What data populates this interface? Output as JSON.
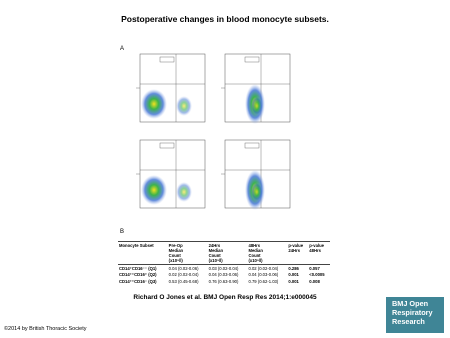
{
  "title": "Postoperative changes in blood monocyte subsets.",
  "panels": [
    "A",
    "B"
  ],
  "table": {
    "header": [
      [
        "Monocyte Subset"
      ],
      [
        "Pre-Op",
        "Median",
        "Count",
        "(x10⁹/l)"
      ],
      [
        "24Hrs",
        "Median",
        "Count",
        "(x10⁹/l)"
      ],
      [
        "48Hrs",
        "Median",
        "Count",
        "(x10⁹/l)"
      ],
      [
        "p-value",
        "24Hrs"
      ],
      [
        "p-value",
        "48Hrs"
      ]
    ],
    "rows": [
      [
        "CD14⁺CD16⁻⁻ (Q1)",
        "0.04 (0.02-0.06)",
        "0.03 (0.02-0.04)",
        "0.02 (0.02-0.04)",
        "0.286",
        "0.057"
      ],
      [
        "CD14⁺⁺CD16⁺ (Q2)",
        "0.02 (0.02-0.04)",
        "0.04 (0.03-0.06)",
        "0.04 (0.03-0.06)",
        "0.001",
        "<0.0005"
      ],
      [
        "CD14⁺⁺CD16⁻ (Q3)",
        "0.53 (0.45-0.68)",
        "0.76 (0.63-0.90)",
        "0.79 (0.62-1.03)",
        "0.001",
        "0.008"
      ]
    ]
  },
  "citation": "Richard O Jones et al. BMJ Open Resp Res 2014;1:e000045",
  "logo": [
    "BMJ Open",
    "Respiratory",
    "Research"
  ],
  "copyright": "©2014 by British Thoracic Society"
}
